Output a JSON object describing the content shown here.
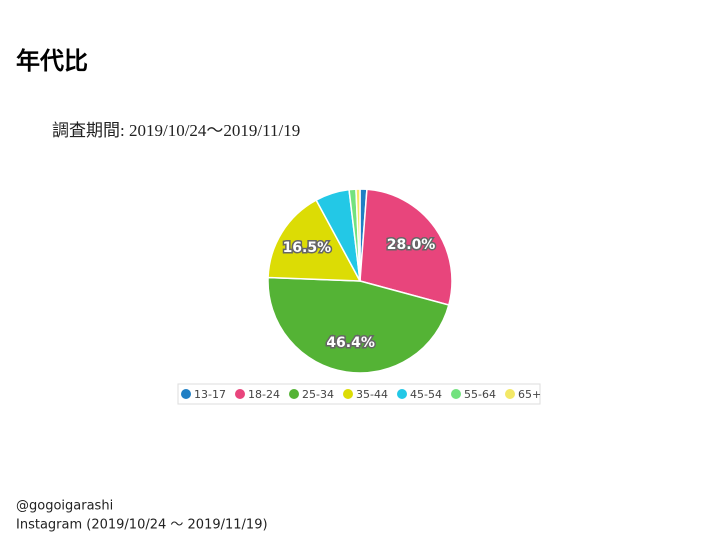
{
  "slide": {
    "title": "年代比",
    "period": "調査期間: 2019/10/24～2019/11/19",
    "footer": [
      "@gogoigarashi",
      "Instagram (2019/10/24 ～ 2019/11/19)"
    ]
  },
  "chart_data": {
    "type": "pie",
    "categories": [
      "13-17",
      "18-24",
      "25-34",
      "35-44",
      "45-54",
      "55-64",
      "65+"
    ],
    "values": [
      1.2,
      28.0,
      46.4,
      16.5,
      6.0,
      1.2,
      0.7
    ],
    "value_labels": [
      null,
      "28.0%",
      "46.4%",
      "16.5%",
      null,
      null,
      null
    ],
    "colors": [
      "#1f7fc4",
      "#e8457c",
      "#54b335",
      "#dcdc05",
      "#23c8e6",
      "#72e27e",
      "#f3e866"
    ],
    "legend": "bottom"
  }
}
